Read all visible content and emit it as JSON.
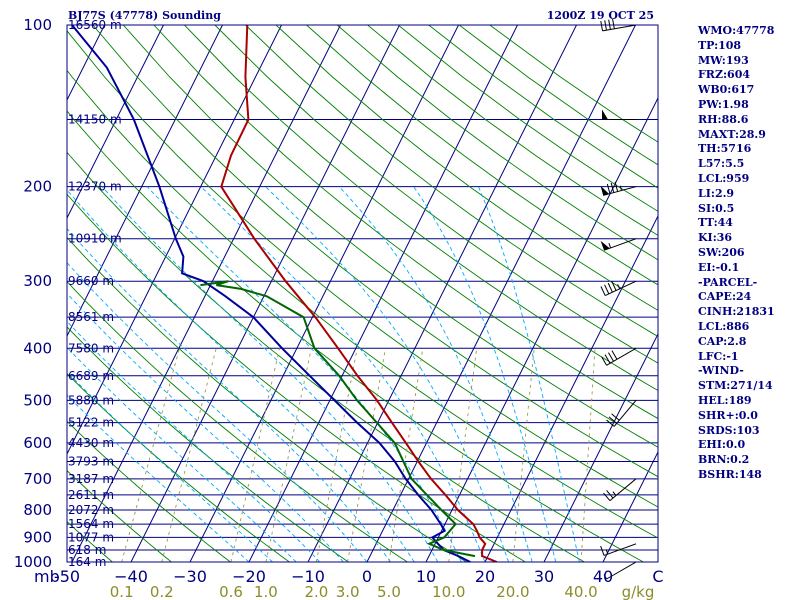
{
  "header": {
    "title": "BJ77S (47778) Sounding",
    "time": "1200Z 19 OCT 25"
  },
  "colors": {
    "frame": "#000080",
    "isotherm": "#000080",
    "dry_adiabat": "#008000",
    "moist_adiabat": "#00aaff",
    "mixing_ratio": "#9a9a4a",
    "temperature": "#aa0000",
    "dewpoint": "#000099",
    "wetbulb": "#006600",
    "wind": "#000000"
  },
  "chart_data": {
    "type": "line",
    "subtype": "skew-t log-p sounding",
    "pressure_range_hpa": [
      1000,
      100
    ],
    "temp_range_c": [
      -50,
      50
    ],
    "pressure_ticks": [
      {
        "p": 100,
        "label": "100"
      },
      {
        "p": 200,
        "label": "200"
      },
      {
        "p": 300,
        "label": "300"
      },
      {
        "p": 400,
        "label": "400"
      },
      {
        "p": 500,
        "label": "500"
      },
      {
        "p": 600,
        "label": "600"
      },
      {
        "p": 700,
        "label": "700"
      },
      {
        "p": 800,
        "label": "800"
      },
      {
        "p": 900,
        "label": "900"
      },
      {
        "p": 1000,
        "label": "1000"
      }
    ],
    "height_labels": [
      {
        "p": 100,
        "label": "16560 m"
      },
      {
        "p": 150,
        "label": "14150 m"
      },
      {
        "p": 200,
        "label": "12370 m"
      },
      {
        "p": 250,
        "label": "10910 m"
      },
      {
        "p": 300,
        "label": "9660 m"
      },
      {
        "p": 350,
        "label": "8561 m"
      },
      {
        "p": 400,
        "label": "7580 m"
      },
      {
        "p": 450,
        "label": "6689 m"
      },
      {
        "p": 500,
        "label": "5880 m"
      },
      {
        "p": 550,
        "label": "5122 m"
      },
      {
        "p": 600,
        "label": "4430 m"
      },
      {
        "p": 650,
        "label": "3793 m"
      },
      {
        "p": 700,
        "label": "3187 m"
      },
      {
        "p": 750,
        "label": "2611 m"
      },
      {
        "p": 800,
        "label": "2072 m"
      },
      {
        "p": 850,
        "label": "1564 m"
      },
      {
        "p": 900,
        "label": "1077 m"
      },
      {
        "p": 950,
        "label": "618 m"
      },
      {
        "p": 1000,
        "label": "164 m"
      }
    ],
    "temp_axis": {
      "unit_left": "mb",
      "ticks": [
        {
          "t": -50,
          "label": "-50"
        },
        {
          "t": -40,
          "label": "−40"
        },
        {
          "t": -30,
          "label": "−30"
        },
        {
          "t": -20,
          "label": "−20"
        },
        {
          "t": -10,
          "label": "−10"
        },
        {
          "t": 0,
          "label": "0"
        },
        {
          "t": 10,
          "label": "10"
        },
        {
          "t": 20,
          "label": "20"
        },
        {
          "t": 30,
          "label": "30"
        },
        {
          "t": 40,
          "label": "40"
        },
        {
          "t": 50,
          "label": "C"
        }
      ]
    },
    "mixing_ratio_axis": {
      "unit": "g/kg",
      "ticks": [
        {
          "w": 0.1,
          "label": "0.1"
        },
        {
          "w": 0.2,
          "label": "0.2"
        },
        {
          "w": 0.6,
          "label": "0.6"
        },
        {
          "w": 1.0,
          "label": "1.0"
        },
        {
          "w": 2.0,
          "label": "2.0"
        },
        {
          "w": 3.0,
          "label": "3.0"
        },
        {
          "w": 5.0,
          "label": "5.0"
        },
        {
          "w": 10.0,
          "label": "10.0"
        },
        {
          "w": 20.0,
          "label": "20.0"
        },
        {
          "w": 40.0,
          "label": "40.0"
        }
      ]
    },
    "series": [
      {
        "name": "temperature",
        "points": [
          [
            1000,
            22.0
          ],
          [
            975,
            19.0
          ],
          [
            950,
            18.5
          ],
          [
            925,
            18.5
          ],
          [
            900,
            17.0
          ],
          [
            875,
            16.0
          ],
          [
            850,
            14.8
          ],
          [
            800,
            11.0
          ],
          [
            750,
            7.6
          ],
          [
            700,
            3.8
          ],
          [
            650,
            0.2
          ],
          [
            600,
            -3.5
          ],
          [
            550,
            -7.6
          ],
          [
            500,
            -12.0
          ],
          [
            450,
            -17.4
          ],
          [
            400,
            -23.0
          ],
          [
            350,
            -29.5
          ],
          [
            300,
            -37.6
          ],
          [
            250,
            -46.5
          ],
          [
            200,
            -56.5
          ],
          [
            175,
            -57.5
          ],
          [
            150,
            -57.6
          ],
          [
            125,
            -61.7
          ],
          [
            100,
            -65.8
          ]
        ]
      },
      {
        "name": "dewpoint",
        "points": [
          [
            1000,
            17.5
          ],
          [
            975,
            15.0
          ],
          [
            950,
            12.0
          ],
          [
            925,
            10.5
          ],
          [
            900,
            9.0
          ],
          [
            875,
            10.5
          ],
          [
            850,
            9.3
          ],
          [
            800,
            6.5
          ],
          [
            750,
            3.0
          ],
          [
            700,
            -0.5
          ],
          [
            650,
            -3.8
          ],
          [
            600,
            -8.0
          ],
          [
            550,
            -13.5
          ],
          [
            500,
            -19.2
          ],
          [
            450,
            -25.5
          ],
          [
            400,
            -32.5
          ],
          [
            350,
            -40.0
          ],
          [
            320,
            -46.5
          ],
          [
            300,
            -51.5
          ],
          [
            290,
            -55.8
          ],
          [
            270,
            -57.0
          ],
          [
            250,
            -59.8
          ],
          [
            200,
            -67.0
          ],
          [
            150,
            -77.0
          ],
          [
            120,
            -86.0
          ],
          [
            100,
            -95.5
          ]
        ]
      },
      {
        "name": "wetbulb",
        "points": [
          [
            975,
            17.8
          ],
          [
            950,
            12.0
          ],
          [
            925,
            9.0
          ],
          [
            900,
            11.0
          ],
          [
            850,
            11.8
          ],
          [
            800,
            8.2
          ],
          [
            700,
            0.5
          ],
          [
            600,
            -5.4
          ],
          [
            500,
            -15.4
          ],
          [
            450,
            -20.5
          ],
          [
            400,
            -27.0
          ],
          [
            350,
            -31.5
          ],
          [
            320,
            -39.5
          ],
          [
            310,
            -44.5
          ],
          [
            305,
            -49.0
          ],
          [
            300,
            -47.3
          ],
          [
            305,
            -51.7
          ]
        ]
      }
    ],
    "wind_barbs": [
      {
        "p": 1000,
        "dir": 240,
        "spd": 5
      },
      {
        "p": 925,
        "dir": 250,
        "spd": 15
      },
      {
        "p": 700,
        "dir": 230,
        "spd": 25
      },
      {
        "p": 500,
        "dir": 220,
        "spd": 30
      },
      {
        "p": 400,
        "dir": 240,
        "spd": 40
      },
      {
        "p": 300,
        "dir": 245,
        "spd": 45
      },
      {
        "p": 250,
        "dir": 250,
        "spd": 55
      },
      {
        "p": 200,
        "dir": 255,
        "spd": 85
      },
      {
        "p": 150,
        "dir": 270,
        "spd": 50
      },
      {
        "p": 100,
        "dir": 260,
        "spd": 40
      }
    ]
  },
  "indices": [
    "WMO:47778",
    "TP:108",
    "MW:193",
    "FRZ:604",
    "WB0:617",
    "PW:1.98",
    "RH:88.6",
    "MAXT:28.9",
    "TH:5716",
    "L57:5.5",
    "LCL:959",
    "LI:2.9",
    "SI:0.5",
    "TT:44",
    "KI:36",
    "SW:206",
    "EI:-0.1",
    "-PARCEL-",
    "CAPE:24",
    "CINH:21831",
    "LCL:886",
    "CAP:2.8",
    "LFC:-1",
    "-WIND-",
    "STM:271/14",
    "HEL:189",
    "SHR+:0.0",
    "SRDS:103",
    "EHI:0.0",
    "BRN:0.2",
    "BSHR:148"
  ]
}
